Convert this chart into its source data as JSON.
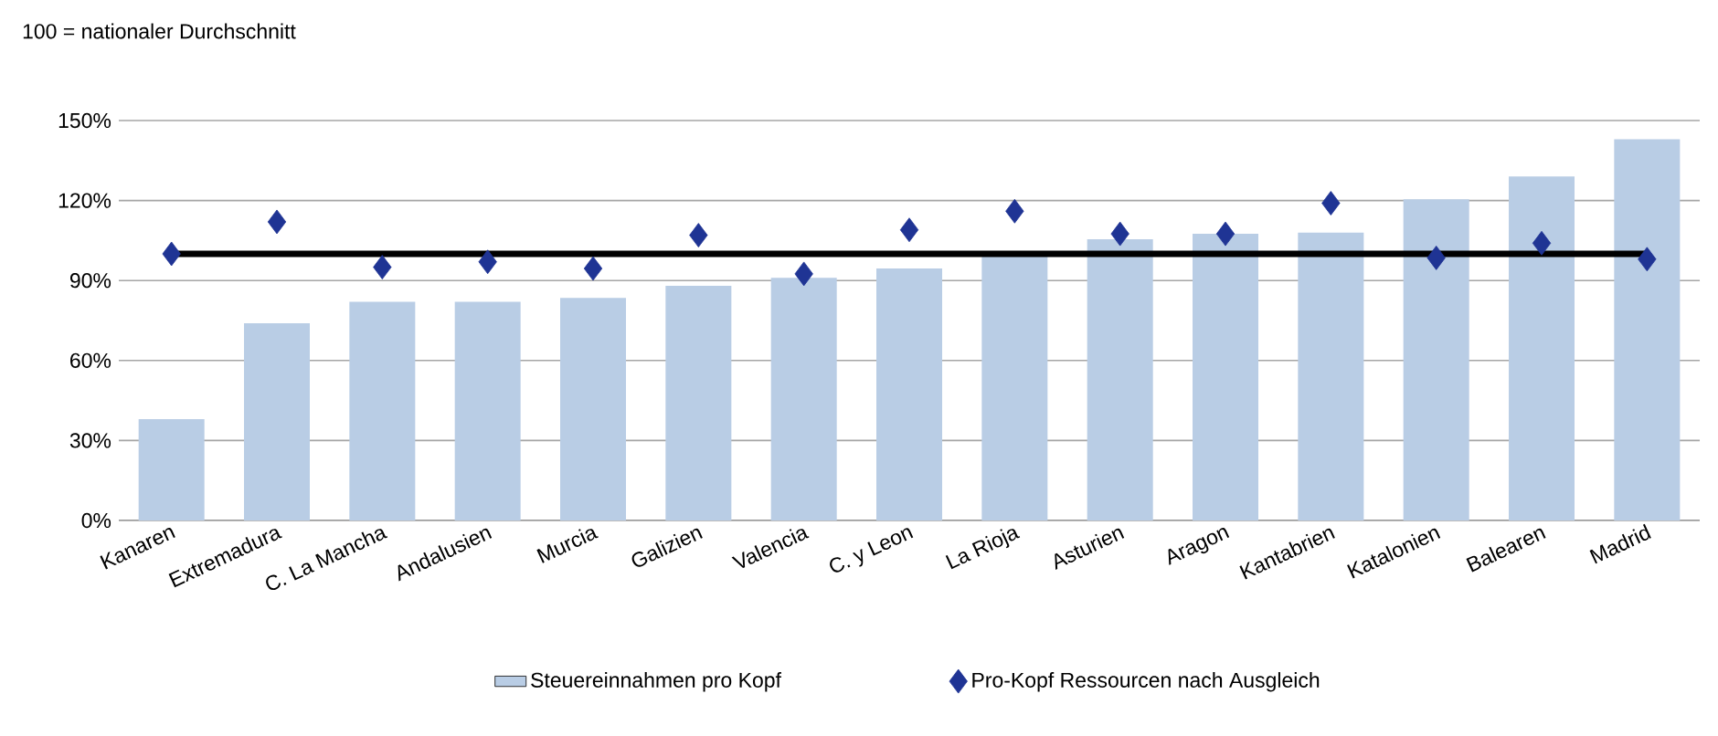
{
  "chart_data": {
    "type": "bar",
    "annotations": [
      "100 = nationaler Durchschnitt"
    ],
    "categories": [
      "Kanaren",
      "Extremadura",
      "C. La Mancha",
      "Andalusien",
      "Murcia",
      "Galizien",
      "Valencia",
      "C. y Leon",
      "La Rioja",
      "Asturien",
      "Aragon",
      "Kantabrien",
      "Katalonien",
      "Balearen",
      "Madrid"
    ],
    "series": [
      {
        "name": "Steuereinnahmen pro Kopf",
        "color": "#b9cde5",
        "values": [
          38,
          74,
          82,
          82,
          83.5,
          88,
          91,
          94.5,
          99,
          105.5,
          107.5,
          108,
          120.5,
          129,
          143
        ]
      },
      {
        "name": "Pro-Kopf Ressourcen nach Ausgleich",
        "type": "scatter",
        "marker": "diamond",
        "color": "#1f3494",
        "values": [
          100,
          112,
          95,
          97,
          94.5,
          107,
          92.5,
          109,
          116,
          107.5,
          107.5,
          119,
          98.5,
          104,
          98
        ]
      }
    ],
    "ylim": [
      0,
      150
    ],
    "yticks": [
      {
        "value": 0,
        "label": "0%"
      },
      {
        "value": 30,
        "label": "30%"
      },
      {
        "value": 60,
        "label": "60%"
      },
      {
        "value": 90,
        "label": "90%"
      },
      {
        "value": 120,
        "label": "120%"
      },
      {
        "value": 150,
        "label": "150%"
      }
    ],
    "ref_lines": [
      {
        "axis": "y",
        "value": 100,
        "color": "#000000"
      }
    ],
    "grid": "y",
    "legend": "bottom"
  }
}
